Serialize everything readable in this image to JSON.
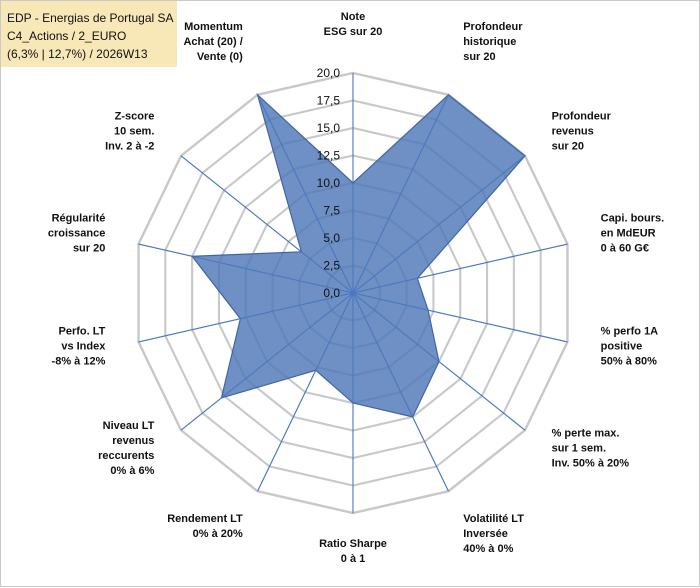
{
  "info": {
    "line1": "EDP - Energias de Portugal SA",
    "line2": "C4_Actions / 2_EURO",
    "line3": "(6,3% | 12,7%) / 2026W13"
  },
  "colors": {
    "fill": "#4f78b7",
    "stroke": "#3f65a8",
    "grid": "#c8c8c8",
    "spoke": "#4a78c3",
    "info_bg": "#f8e7b7"
  },
  "chart_data": {
    "type": "radar",
    "title": "",
    "rmin": 0,
    "rmax": 20,
    "tick_step": 2.5,
    "tick_labels": [
      "0,0",
      "2,5",
      "5,0",
      "7,5",
      "10,0",
      "12,5",
      "15,0",
      "17,5",
      "20,0"
    ],
    "axes": [
      {
        "label_lines": [
          "Note",
          "ESG sur 20"
        ],
        "value": 10.0
      },
      {
        "label_lines": [
          "Profondeur",
          "historique",
          "sur 20"
        ],
        "value": 20.0
      },
      {
        "label_lines": [
          "Profondeur",
          "revenus",
          "sur 20"
        ],
        "value": 20.0
      },
      {
        "label_lines": [
          "Capi. bours.",
          "en MdEUR",
          "0 à 60 G€"
        ],
        "value": 6.0
      },
      {
        "label_lines": [
          "% perfo 1A",
          "positive",
          "50% à 80%"
        ],
        "value": 7.0
      },
      {
        "label_lines": [
          "% perte max.",
          "sur 1 sem.",
          "Inv. 50% à 20%"
        ],
        "value": 10.0
      },
      {
        "label_lines": [
          "Volatilité LT",
          "Inversée",
          "40% à 0%"
        ],
        "value": 12.5
      },
      {
        "label_lines": [
          "Ratio Sharpe",
          "0 à 1"
        ],
        "value": 10.0
      },
      {
        "label_lines": [
          "Rendement LT",
          "0% à 20%"
        ],
        "value": 7.8
      },
      {
        "label_lines": [
          "Niveau LT",
          "revenus",
          "reccurents",
          "0% à 6%"
        ],
        "value": 15.3
      },
      {
        "label_lines": [
          "Perfo. LT",
          "vs Index",
          "-8% à 12%"
        ],
        "value": 10.5
      },
      {
        "label_lines": [
          "Régularité",
          "croissance",
          "sur 20"
        ],
        "value": 15.0
      },
      {
        "label_lines": [
          "Z-score",
          "10 sem.",
          "Inv. 2 à -2"
        ],
        "value": 6.0
      },
      {
        "label_lines": [
          "Momentum",
          "Achat (20) /",
          "Vente (0)"
        ],
        "value": 20.0
      }
    ]
  }
}
